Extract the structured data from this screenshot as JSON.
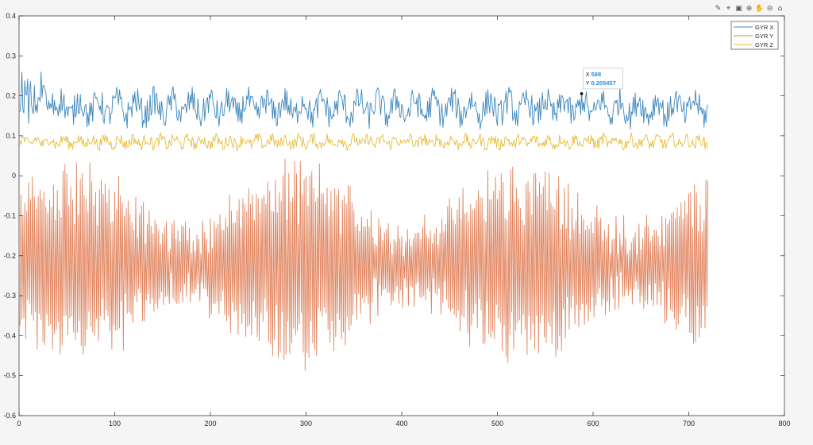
{
  "toolbar": {
    "icons": [
      "brush-icon",
      "data-cursor-icon",
      "save-icon",
      "zoom-in-icon",
      "pan-icon",
      "zoom-out-icon",
      "home-icon"
    ]
  },
  "chart_data": {
    "type": "line",
    "title": "",
    "xlabel": "",
    "ylabel": "",
    "xlim": [
      0,
      800
    ],
    "ylim": [
      -0.6,
      0.4
    ],
    "xticks": [
      0,
      100,
      200,
      300,
      400,
      500,
      600,
      700,
      800
    ],
    "xtick_labels": [
      "0",
      "100",
      "200",
      "300",
      "400",
      "500",
      "600",
      "700",
      "800"
    ],
    "yticks": [
      -0.6,
      -0.5,
      -0.4,
      -0.3,
      -0.2,
      -0.1,
      0,
      0.1,
      0.2,
      0.3,
      0.4
    ],
    "ytick_labels": [
      "-0.6",
      "-0.5",
      "-0.4",
      "-0.3",
      "-0.2",
      "-0.1",
      "0",
      "0.1",
      "0.2",
      "0.3",
      "0.4"
    ],
    "grid": false,
    "legend_position": "top-right",
    "num_points": 720,
    "series": [
      {
        "name": "GYR X",
        "color": "#3d87bd",
        "mean": 0.17,
        "amplitude": 0.035,
        "min": 0.1,
        "max": 0.345
      },
      {
        "name": "GYR Y",
        "color": "#e1845e",
        "mean": -0.22,
        "amplitude": 0.18,
        "min": -0.55,
        "max": 0.05
      },
      {
        "name": "GYR Z",
        "color": "#e8bd3c",
        "mean": 0.085,
        "amplitude": 0.015,
        "min": 0.05,
        "max": 0.12
      }
    ],
    "datatip": {
      "x_label": "X",
      "x_value": "588",
      "y_label": "Y",
      "y_value": "0.205457",
      "x": 588,
      "y": 0.205457
    }
  }
}
